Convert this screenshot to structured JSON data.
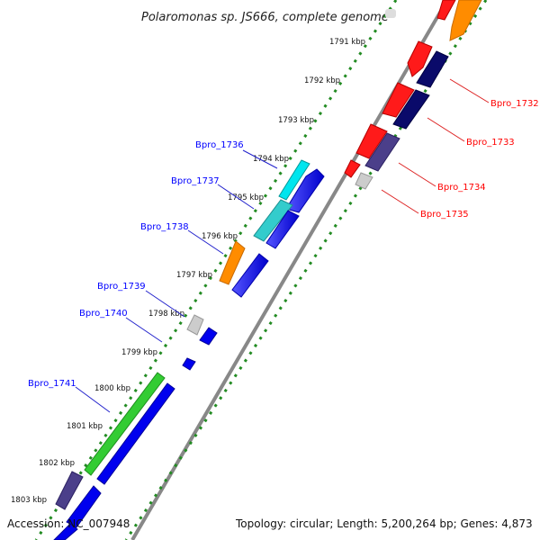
{
  "title": "Polaromonas sp. JS666, complete genome",
  "accession": "Accession: NC_007948",
  "summary": "Topology: circular; Length: 5,200,264 bp; Genes: 4,873",
  "colors": {
    "outer_strand_label": "#0000ff",
    "inner_strand_label": "#ff0000",
    "tick_dots": "#228b22"
  },
  "ticks": [
    "1791 kbp",
    "1792 kbp",
    "1793 kbp",
    "1794 kbp",
    "1795 kbp",
    "1796 kbp",
    "1797 kbp",
    "1798 kbp",
    "1799 kbp",
    "1800 kbp",
    "1801 kbp",
    "1802 kbp",
    "1803 kbp"
  ],
  "gene_labels_left": [
    "Bpro_1736",
    "Bpro_1737",
    "Bpro_1738",
    "Bpro_1739",
    "Bpro_1740",
    "Bpro_1741"
  ],
  "gene_labels_right": [
    "Bpro_1732",
    "Bpro_1733",
    "Bpro_1734",
    "Bpro_1735"
  ]
}
